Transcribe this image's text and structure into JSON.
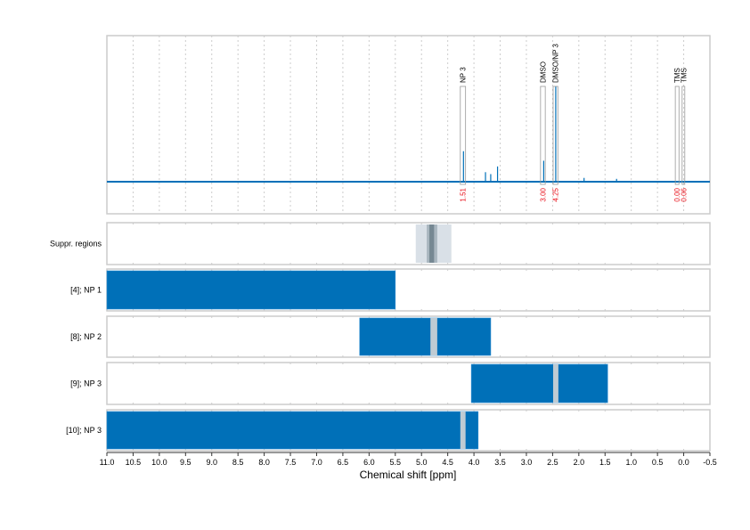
{
  "chart_data": {
    "type": "nmr-spectrum-with-region-tracks",
    "xlabel": "Chemical shift [ppm]",
    "xlim": [
      11.0,
      -0.5
    ],
    "x_ticks": [
      "11.0",
      "10.5",
      "10.0",
      "9.5",
      "9.0",
      "8.5",
      "8.0",
      "7.5",
      "7.0",
      "6.5",
      "6.0",
      "5.5",
      "5.0",
      "4.5",
      "4.0",
      "3.5",
      "3.0",
      "2.5",
      "2.0",
      "1.5",
      "1.0",
      "0.5",
      "0.0",
      "-0.5"
    ],
    "grid": "vertical dotted",
    "colors": {
      "spectrum": "#0070b8",
      "bar": "#0070b8",
      "gap": "#bfcbd3",
      "annotation": "#e8101a",
      "frame": "#cccccc"
    },
    "spectrum_peaks": [
      {
        "ppm": 4.2,
        "intensity": 0.32
      },
      {
        "ppm": 3.78,
        "intensity": 0.1
      },
      {
        "ppm": 3.68,
        "intensity": 0.08
      },
      {
        "ppm": 3.55,
        "intensity": 0.16
      },
      {
        "ppm": 2.67,
        "intensity": 0.22
      },
      {
        "ppm": 2.44,
        "intensity": 1.0
      },
      {
        "ppm": 1.9,
        "intensity": 0.04
      },
      {
        "ppm": 1.28,
        "intensity": 0.03
      }
    ],
    "annotations": [
      {
        "label": "NP 3",
        "from": 4.26,
        "to": 4.16,
        "value": "1.51"
      },
      {
        "label": "DMSO",
        "from": 2.73,
        "to": 2.64,
        "value": "3.00"
      },
      {
        "label": "DMSO/NP 3",
        "from": 2.49,
        "to": 2.4,
        "value": "4.25"
      },
      {
        "label": "TMS",
        "from": 0.16,
        "to": 0.09,
        "value": "0.00"
      },
      {
        "label": "TMS",
        "from": 0.03,
        "to": -0.02,
        "value": "0.06"
      }
    ],
    "suppression": {
      "label": "Suppr. regions",
      "outer": [
        5.11,
        4.43
      ],
      "inner": [
        4.9,
        4.7
      ],
      "core": [
        4.85,
        4.76
      ]
    },
    "tracks": [
      {
        "label": "[4]; NP 1",
        "range": [
          11.0,
          5.5
        ],
        "gap": null
      },
      {
        "label": "[8]; NP 2",
        "range": [
          6.18,
          3.68
        ],
        "gap": [
          4.83,
          4.7
        ]
      },
      {
        "label": "[9]; NP 3",
        "range": [
          4.05,
          1.45
        ],
        "gap": [
          2.49,
          2.39
        ]
      },
      {
        "label": "[10]; NP 3",
        "range": [
          11.0,
          3.92
        ],
        "gap": [
          4.26,
          4.16
        ]
      }
    ]
  }
}
